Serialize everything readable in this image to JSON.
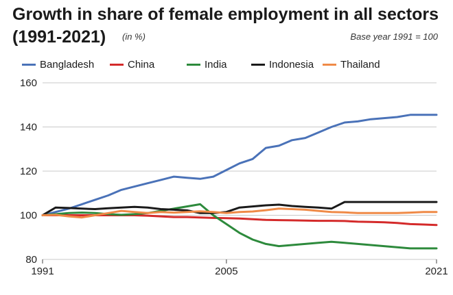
{
  "chart_data": {
    "type": "line",
    "title_line1": "Growth in share of female employment in all sectors",
    "title_line2": "(1991-2021)",
    "subtitle": "(in %)",
    "note": "Base year 1991 = 100",
    "xlabel": "",
    "ylabel": "",
    "xlim": [
      1991,
      2021
    ],
    "ylim": [
      80,
      160
    ],
    "y_ticks": [
      80,
      100,
      120,
      140,
      160
    ],
    "x_tick_labels": [
      "1991",
      "2005",
      "2021"
    ],
    "x_tick_values": [
      1991,
      2005,
      2021
    ],
    "grid": "horizontal",
    "legend_position": "top",
    "x": [
      1991,
      1992,
      1993,
      1994,
      1995,
      1996,
      1997,
      1998,
      1999,
      2000,
      2001,
      2002,
      2003,
      2004,
      2005,
      2006,
      2007,
      2008,
      2009,
      2010,
      2011,
      2012,
      2013,
      2014,
      2015,
      2016,
      2017,
      2018,
      2019,
      2020,
      2021
    ],
    "series": [
      {
        "name": "Bangladesh",
        "color": "#4a72b8",
        "values": [
          100,
          101.5,
          103,
          105,
          107,
          109,
          111.5,
          113,
          114.5,
          116,
          117.5,
          117,
          116.5,
          117.5,
          120.5,
          123.5,
          125.5,
          130.5,
          131.5,
          134,
          135,
          137.5,
          140,
          142,
          142.5,
          143.5,
          144,
          144.5,
          145.5,
          145.5,
          145.5
        ]
      },
      {
        "name": "China",
        "color": "#d42a2a",
        "values": [
          100,
          100,
          100,
          100,
          100,
          100,
          100,
          100,
          99.8,
          99.5,
          99.2,
          99.2,
          99,
          98.8,
          98.7,
          98.5,
          98.2,
          97.9,
          97.8,
          97.7,
          97.6,
          97.5,
          97.5,
          97.4,
          97.1,
          97,
          96.8,
          96.5,
          96,
          95.8,
          95.6
        ]
      },
      {
        "name": "India",
        "color": "#2d8a3c",
        "values": [
          100,
          100.5,
          101,
          101.2,
          101,
          100.5,
          100.2,
          100.5,
          101,
          102,
          103,
          104,
          105,
          100,
          96,
          92,
          89,
          87,
          86,
          86.5,
          87,
          87.5,
          88,
          87.5,
          87,
          86.5,
          86,
          85.5,
          85,
          85,
          85
        ]
      },
      {
        "name": "Indonesia",
        "color": "#1a1a1a",
        "values": [
          100,
          103.5,
          103.3,
          103,
          102.8,
          103.2,
          103.5,
          103.8,
          103.5,
          102.8,
          102.5,
          102.2,
          101,
          101,
          101.5,
          103.5,
          104,
          104.5,
          104.8,
          104.2,
          103.8,
          103.5,
          103,
          106,
          106,
          106,
          106,
          106,
          106,
          106,
          106
        ]
      },
      {
        "name": "Thailand",
        "color": "#ef8a47",
        "values": [
          100,
          100.2,
          99.5,
          99,
          100,
          101,
          102,
          101.5,
          101,
          101.5,
          101.2,
          101.5,
          101.8,
          101.5,
          101,
          101.5,
          101.7,
          102.3,
          103,
          102.8,
          102.5,
          102,
          101.5,
          101.3,
          101,
          101,
          101,
          101,
          101.2,
          101.5,
          101.5
        ]
      }
    ]
  }
}
